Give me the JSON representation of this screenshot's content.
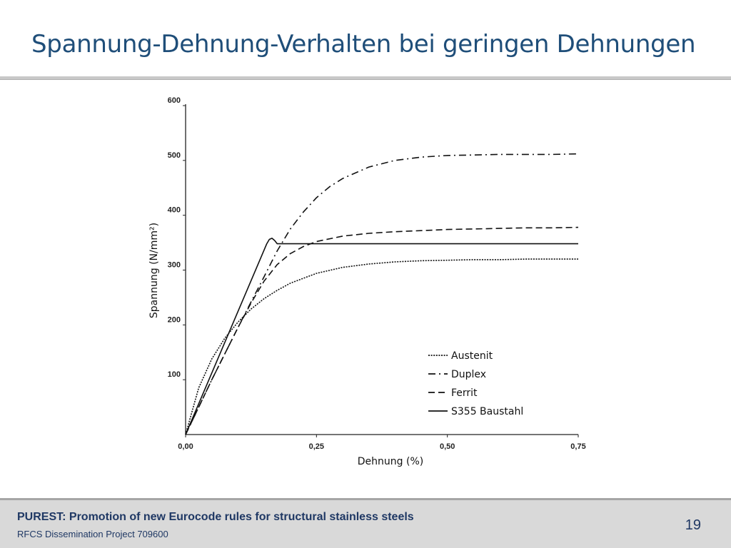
{
  "slide": {
    "title": "Spannung-Dehnung-Verhalten bei geringen Dehnungen",
    "page_number": "19"
  },
  "footer": {
    "title": "PUREST: Promotion of new Eurocode rules for structural stainless steels",
    "subtitle": "RFCS Dissemination Project 709600"
  },
  "chart_data": {
    "type": "line",
    "xlabel": "Dehnung (%)",
    "ylabel": "Spannung (N/mm²)",
    "xlim": [
      0,
      0.75
    ],
    "ylim": [
      0,
      600
    ],
    "x_ticks": [
      0,
      0.25,
      0.5,
      0.75
    ],
    "x_tick_labels": [
      "0,00",
      "0,25",
      "0,50",
      "0,75"
    ],
    "y_ticks": [
      100,
      200,
      300,
      400,
      500,
      600
    ],
    "y_tick_labels": [
      "100",
      "200",
      "300",
      "400",
      "500",
      "600"
    ],
    "grid": false,
    "legend_position": "bottom-right",
    "series": [
      {
        "name": "Austenit",
        "dash": "dotted",
        "x": [
          0,
          0.025,
          0.05,
          0.075,
          0.1,
          0.125,
          0.15,
          0.175,
          0.2,
          0.25,
          0.3,
          0.35,
          0.4,
          0.45,
          0.5,
          0.55,
          0.6,
          0.65,
          0.7,
          0.75
        ],
        "y": [
          0,
          85,
          138,
          176,
          205,
          229,
          248,
          263,
          276,
          294,
          305,
          311,
          315,
          317,
          318,
          319,
          319,
          320,
          320,
          320
        ]
      },
      {
        "name": "Duplex",
        "dash": "dash-dot",
        "x": [
          0,
          0.05,
          0.1,
          0.125,
          0.15,
          0.175,
          0.2,
          0.225,
          0.25,
          0.275,
          0.3,
          0.35,
          0.4,
          0.45,
          0.5,
          0.55,
          0.6,
          0.65,
          0.7,
          0.75
        ],
        "y": [
          0,
          100,
          195,
          242,
          288,
          335,
          375,
          406,
          432,
          452,
          467,
          488,
          500,
          506,
          509,
          510,
          511,
          511,
          511,
          512
        ]
      },
      {
        "name": "Ferrit",
        "dash": "dashed",
        "x": [
          0,
          0.05,
          0.1,
          0.125,
          0.15,
          0.175,
          0.2,
          0.225,
          0.25,
          0.3,
          0.35,
          0.4,
          0.45,
          0.5,
          0.55,
          0.6,
          0.65,
          0.7,
          0.75
        ],
        "y": [
          0,
          100,
          195,
          240,
          280,
          310,
          330,
          343,
          352,
          362,
          367,
          370,
          372,
          374,
          375,
          376,
          377,
          377,
          378
        ]
      },
      {
        "name": "S355 Baustahl",
        "dash": "solid",
        "x": [
          0,
          0.155,
          0.16,
          0.165,
          0.17,
          0.175,
          0.2,
          0.3,
          0.4,
          0.5,
          0.6,
          0.7,
          0.75
        ],
        "y": [
          0,
          348,
          356,
          358,
          354,
          348,
          348,
          348,
          348,
          348,
          348,
          348,
          348
        ]
      }
    ]
  }
}
